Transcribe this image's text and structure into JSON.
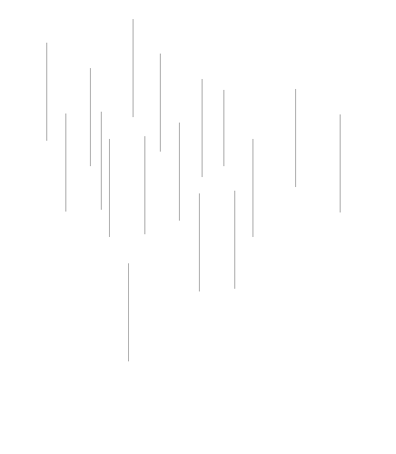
{
  "page": {
    "background_color": "#ffffff",
    "stroke_color": "#a9a9a9",
    "visible_text": []
  }
}
